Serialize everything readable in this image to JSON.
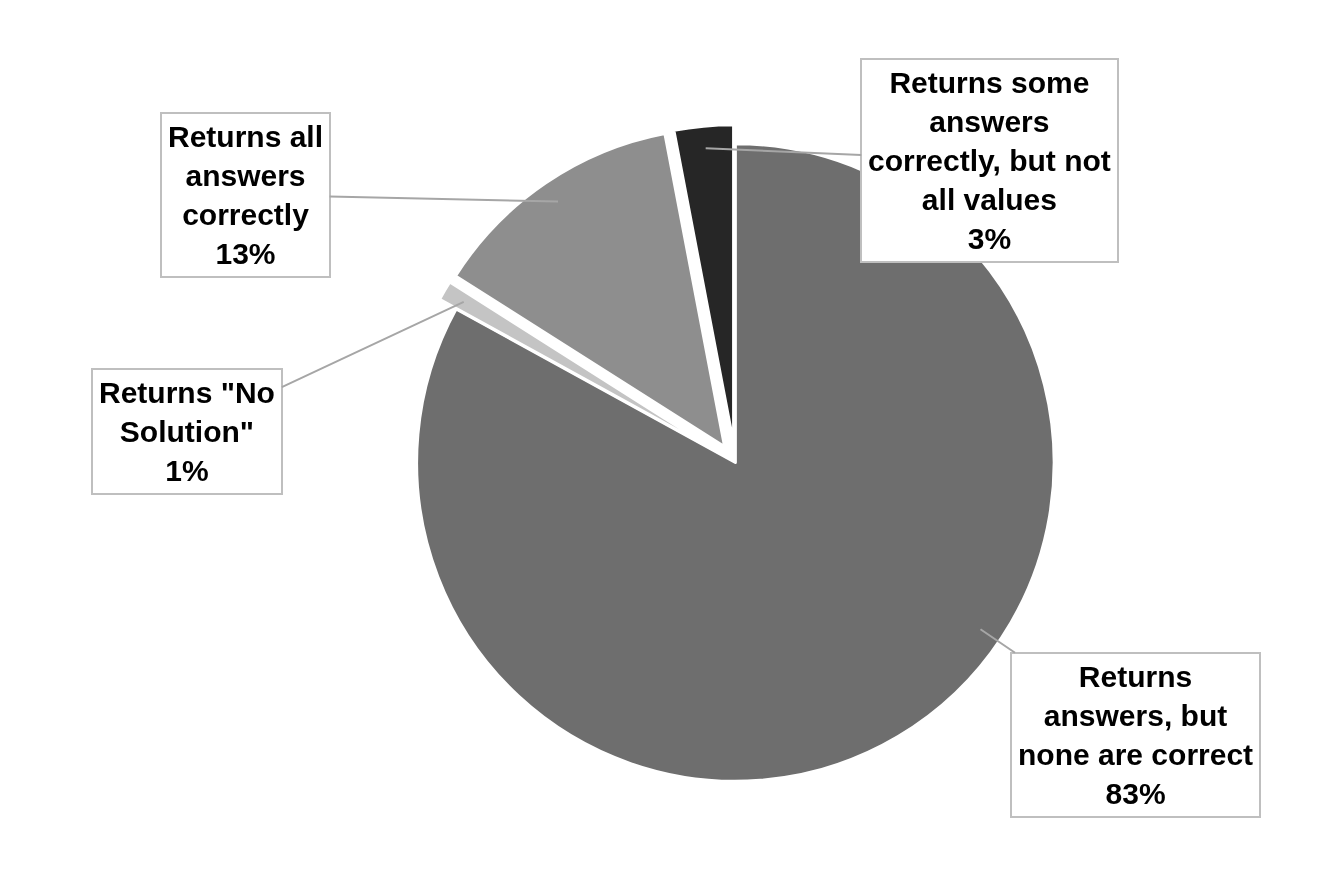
{
  "chart_data": {
    "type": "pie",
    "categories": [
      "Returns answers, but none are correct",
      "Returns \"No Solution\"",
      "Returns all answers correctly",
      "Returns some answers correctly, but not all values"
    ],
    "values": [
      83,
      1,
      13,
      3
    ],
    "colors": [
      "#6e6e6e",
      "#c4c4c4",
      "#8e8e8e",
      "#262626"
    ],
    "value_labels": [
      "83%",
      "1%",
      "13%",
      "3%"
    ],
    "legend": false
  }
}
